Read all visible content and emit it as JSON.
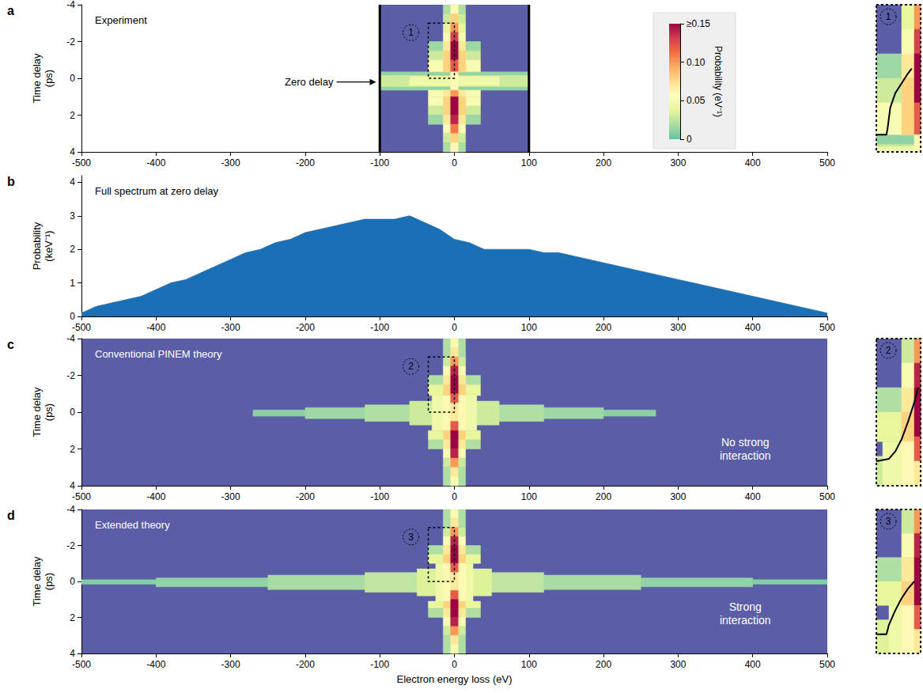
{
  "chart_data": [
    {
      "label": "a",
      "type": "heatmap",
      "title": "Experiment",
      "xlim": [
        -500,
        500
      ],
      "xticks": [
        -500,
        -400,
        -300,
        -200,
        -100,
        0,
        100,
        200,
        300,
        400,
        500
      ],
      "ylim": [
        4,
        -4
      ],
      "yticks": [
        -4,
        -2,
        0,
        2,
        4
      ],
      "ylabel": "Time delay (ps)",
      "measured_range": [
        -100,
        100
      ],
      "annotations": [
        {
          "text": "Zero delay",
          "x": -105,
          "y": 0.2
        }
      ],
      "colorbar": {
        "label": "Probability (eV⁻¹)",
        "range": [
          0,
          0.15
        ],
        "ticks": [
          0,
          0.05,
          {
            "value": 0.1,
            "label": "0.10"
          },
          {
            "value": 0.15,
            "label": "≥0.15"
          }
        ]
      },
      "cells": [
        [
          -100,
          100,
          -0.35,
          0.65,
          0.012
        ],
        [
          -100,
          100,
          -0.15,
          0.45,
          0.03
        ],
        [
          -60,
          60,
          -0.1,
          0.4,
          0.045
        ],
        [
          -35,
          35,
          -2,
          -1.5,
          0.015
        ],
        [
          -35,
          35,
          -1.5,
          -1,
          0.03
        ],
        [
          -35,
          35,
          -1,
          -0.35,
          0.05
        ],
        [
          -35,
          35,
          0.65,
          1,
          0.05
        ],
        [
          -35,
          35,
          1,
          1.5,
          0.05
        ],
        [
          -35,
          35,
          1.5,
          2,
          0.03
        ],
        [
          -35,
          35,
          2,
          2.5,
          0.015
        ],
        [
          -15,
          15,
          -4,
          -3.5,
          0.02
        ],
        [
          -15,
          15,
          -3.5,
          -3,
          0.03
        ],
        [
          -15,
          15,
          -3,
          -2.5,
          0.04
        ],
        [
          -15,
          15,
          -2.5,
          -2,
          0.05
        ],
        [
          -15,
          15,
          -2,
          -1.5,
          0.07
        ],
        [
          -15,
          15,
          -1.5,
          -1,
          0.08
        ],
        [
          -15,
          15,
          -1,
          -0.35,
          0.08
        ],
        [
          -15,
          15,
          0.65,
          1,
          0.07
        ],
        [
          -15,
          15,
          1,
          1.5,
          0.08
        ],
        [
          -15,
          15,
          1.5,
          2,
          0.08
        ],
        [
          -15,
          15,
          2,
          2.5,
          0.07
        ],
        [
          -15,
          15,
          2.5,
          3,
          0.05
        ],
        [
          -15,
          15,
          3,
          3.5,
          0.03
        ],
        [
          -15,
          15,
          3.5,
          4,
          0.02
        ],
        [
          -5,
          5,
          -4,
          -3.5,
          0.06
        ],
        [
          -5,
          5,
          -3.5,
          -3,
          0.08
        ],
        [
          -5,
          5,
          -3,
          -2.5,
          0.1
        ],
        [
          -5,
          5,
          -2.5,
          -2,
          0.13
        ],
        [
          -5,
          5,
          -2,
          -1.5,
          0.16
        ],
        [
          -5,
          5,
          -1.5,
          -1,
          0.15
        ],
        [
          -5,
          5,
          -1,
          -0.35,
          0.12
        ],
        [
          -5,
          5,
          -0.35,
          0.65,
          0.06
        ],
        [
          -5,
          5,
          0.65,
          1,
          0.1
        ],
        [
          -5,
          5,
          1,
          1.5,
          0.15
        ],
        [
          -5,
          5,
          1.5,
          2,
          0.16
        ],
        [
          -5,
          5,
          2,
          2.5,
          0.14
        ],
        [
          -5,
          5,
          2.5,
          3,
          0.11
        ],
        [
          -5,
          5,
          3,
          3.5,
          0.08
        ],
        [
          -5,
          5,
          3.5,
          4,
          0.06
        ]
      ],
      "inset": {
        "label": "1",
        "xlim": [
          -35,
          0
        ],
        "ylim": [
          0,
          -3
        ],
        "tick_labels": false,
        "curve": {
          "x": [
            -35,
            -27,
            -26,
            -24,
            -20,
            -15,
            -10,
            -7
          ],
          "y": [
            -0.35,
            -0.35,
            -0.5,
            -0.9,
            -1.2,
            -1.4,
            -1.6,
            -1.7
          ]
        }
      }
    },
    {
      "label": "b",
      "type": "area",
      "title": "Full spectrum at zero delay",
      "color": "#1a6fb5",
      "xlim": [
        -500,
        500
      ],
      "xticks": [
        -500,
        -400,
        -300,
        -200,
        -100,
        0,
        100,
        200,
        300,
        400,
        500
      ],
      "ylim": [
        0,
        4.2
      ],
      "yticks": [
        0,
        1,
        2,
        3,
        4
      ],
      "ylabel": "Probability (keV⁻¹)",
      "x": [
        -500,
        -480,
        -460,
        -440,
        -420,
        -400,
        -380,
        -360,
        -340,
        -320,
        -300,
        -280,
        -260,
        -240,
        -220,
        -200,
        -180,
        -160,
        -140,
        -120,
        -100,
        -80,
        -60,
        -40,
        -20,
        0,
        20,
        40,
        60,
        80,
        100,
        120,
        140,
        160,
        180,
        200,
        220,
        240,
        260,
        280,
        300,
        320,
        340,
        360,
        380,
        400,
        420,
        440,
        460,
        480,
        500
      ],
      "values": [
        0.1,
        0.3,
        0.4,
        0.5,
        0.6,
        0.8,
        1.0,
        1.1,
        1.3,
        1.5,
        1.7,
        1.9,
        2.0,
        2.2,
        2.3,
        2.5,
        2.6,
        2.7,
        2.8,
        2.9,
        2.9,
        2.9,
        3.0,
        2.8,
        2.6,
        2.3,
        2.2,
        2.0,
        2.0,
        2.0,
        2.0,
        1.9,
        1.9,
        1.8,
        1.7,
        1.6,
        1.5,
        1.4,
        1.3,
        1.2,
        1.1,
        1.0,
        0.9,
        0.8,
        0.7,
        0.6,
        0.5,
        0.4,
        0.3,
        0.2,
        0.1
      ]
    },
    {
      "label": "c",
      "type": "heatmap",
      "title": "Conventional PINEM theory",
      "xlim": [
        -500,
        500
      ],
      "xticks": [
        -500,
        -400,
        -300,
        -200,
        -100,
        0,
        100,
        200,
        300,
        400,
        500
      ],
      "ylim": [
        4,
        -4
      ],
      "yticks": [
        -4,
        -2,
        0,
        2,
        4
      ],
      "ylabel": "Time delay (ps)",
      "annotations": [
        {
          "text": "No strong interaction",
          "x": 390,
          "y": 2
        }
      ],
      "cells": [
        [
          -270,
          270,
          -0.12,
          0.22,
          0.01
        ],
        [
          -200,
          200,
          -0.25,
          0.35,
          0.015
        ],
        [
          -120,
          120,
          -0.4,
          0.5,
          0.02
        ],
        [
          -60,
          60,
          -0.6,
          0.7,
          0.03
        ],
        [
          -30,
          30,
          -0.9,
          1.0,
          0.045
        ],
        [
          -35,
          35,
          -2,
          -1.5,
          0.02
        ],
        [
          -35,
          35,
          -1.5,
          -0.9,
          0.04
        ],
        [
          -35,
          35,
          1.0,
          1.5,
          0.04
        ],
        [
          -35,
          35,
          1.5,
          2,
          0.02
        ],
        [
          -15,
          15,
          -4,
          -3,
          0.02
        ],
        [
          -15,
          15,
          -3,
          -2.5,
          0.03
        ],
        [
          -15,
          15,
          -2.5,
          -2,
          0.05
        ],
        [
          -15,
          15,
          -2,
          -1.5,
          0.07
        ],
        [
          -15,
          15,
          -1.5,
          -0.9,
          0.08
        ],
        [
          -15,
          15,
          -0.9,
          1.0,
          0.06
        ],
        [
          -15,
          15,
          1,
          1.5,
          0.08
        ],
        [
          -15,
          15,
          1.5,
          2,
          0.07
        ],
        [
          -15,
          15,
          2,
          2.5,
          0.05
        ],
        [
          -15,
          15,
          2.5,
          3,
          0.03
        ],
        [
          -15,
          15,
          3,
          4,
          0.02
        ],
        [
          -5,
          5,
          -4,
          -3.5,
          0.05
        ],
        [
          -5,
          5,
          -3.5,
          -3,
          0.07
        ],
        [
          -5,
          5,
          -3,
          -2.5,
          0.1
        ],
        [
          -5,
          5,
          -2.5,
          -2,
          0.14
        ],
        [
          -5,
          5,
          -2,
          -1.5,
          0.16
        ],
        [
          -5,
          5,
          -1.5,
          -1,
          0.16
        ],
        [
          -5,
          5,
          -1,
          -0.5,
          0.12
        ],
        [
          -5,
          5,
          -0.5,
          0.5,
          0.07
        ],
        [
          -5,
          5,
          0.5,
          1,
          0.12
        ],
        [
          -5,
          5,
          1,
          1.5,
          0.16
        ],
        [
          -5,
          5,
          1.5,
          2,
          0.16
        ],
        [
          -5,
          5,
          2,
          2.5,
          0.14
        ],
        [
          -5,
          5,
          2.5,
          3,
          0.1
        ],
        [
          -5,
          5,
          3,
          3.5,
          0.07
        ],
        [
          -5,
          5,
          3.5,
          4,
          0.05
        ]
      ],
      "inset": {
        "label": "2",
        "xlim": [
          -35,
          0
        ],
        "ylim": [
          0,
          -3
        ],
        "tick_labels": false,
        "curve": {
          "x": [
            -35,
            -25,
            -20,
            -15,
            -10,
            -5,
            -2
          ],
          "y": [
            -0.5,
            -0.55,
            -0.7,
            -0.95,
            -1.3,
            -1.7,
            -2.0
          ]
        }
      }
    },
    {
      "label": "d",
      "type": "heatmap",
      "title": "Extended theory",
      "xlim": [
        -500,
        500
      ],
      "xticks": [
        -500,
        -400,
        -300,
        -200,
        -100,
        0,
        100,
        200,
        300,
        400,
        500
      ],
      "ylim": [
        4,
        -4
      ],
      "yticks": [
        -4,
        -2,
        0,
        2,
        4
      ],
      "ylabel": "Time delay (ps)",
      "xlabel": "Electron energy loss (eV)",
      "annotations": [
        {
          "text": "Strong interaction",
          "x": 390,
          "y": 1.8
        }
      ],
      "cells": [
        [
          -500,
          500,
          -0.1,
          0.15,
          0.008
        ],
        [
          -400,
          400,
          -0.2,
          0.3,
          0.012
        ],
        [
          -250,
          250,
          -0.35,
          0.45,
          0.018
        ],
        [
          -120,
          120,
          -0.5,
          0.6,
          0.025
        ],
        [
          -50,
          50,
          -0.7,
          0.8,
          0.035
        ],
        [
          -25,
          25,
          -1.0,
          1.1,
          0.045
        ],
        [
          -35,
          35,
          -2,
          -1.5,
          0.02
        ],
        [
          -35,
          35,
          -1.5,
          -1.0,
          0.04
        ],
        [
          -35,
          35,
          1.1,
          1.5,
          0.04
        ],
        [
          -35,
          35,
          1.5,
          2,
          0.02
        ],
        [
          -15,
          15,
          -4,
          -3,
          0.02
        ],
        [
          -15,
          15,
          -3,
          -2.5,
          0.03
        ],
        [
          -15,
          15,
          -2.5,
          -2,
          0.05
        ],
        [
          -15,
          15,
          -2,
          -1.5,
          0.07
        ],
        [
          -15,
          15,
          -1.5,
          -1.0,
          0.08
        ],
        [
          -15,
          15,
          -1.0,
          1.1,
          0.06
        ],
        [
          -15,
          15,
          1.1,
          1.5,
          0.08
        ],
        [
          -15,
          15,
          1.5,
          2,
          0.07
        ],
        [
          -15,
          15,
          2,
          2.5,
          0.05
        ],
        [
          -15,
          15,
          2.5,
          3,
          0.03
        ],
        [
          -15,
          15,
          3,
          4,
          0.02
        ],
        [
          -5,
          5,
          -4,
          -3.5,
          0.05
        ],
        [
          -5,
          5,
          -3.5,
          -3,
          0.07
        ],
        [
          -5,
          5,
          -3,
          -2.5,
          0.1
        ],
        [
          -5,
          5,
          -2.5,
          -2,
          0.14
        ],
        [
          -5,
          5,
          -2,
          -1.5,
          0.16
        ],
        [
          -5,
          5,
          -1.5,
          -1,
          0.16
        ],
        [
          -5,
          5,
          -1,
          -0.5,
          0.12
        ],
        [
          -5,
          5,
          -0.5,
          0.5,
          0.07
        ],
        [
          -5,
          5,
          0.5,
          1,
          0.12
        ],
        [
          -5,
          5,
          1,
          1.5,
          0.16
        ],
        [
          -5,
          5,
          1.5,
          2,
          0.16
        ],
        [
          -5,
          5,
          2,
          2.5,
          0.14
        ],
        [
          -5,
          5,
          2.5,
          3,
          0.1
        ],
        [
          -5,
          5,
          3,
          3.5,
          0.07
        ],
        [
          -5,
          5,
          3.5,
          4,
          0.05
        ]
      ],
      "inset": {
        "label": "3",
        "xlim": [
          -35,
          0
        ],
        "ylim": [
          0,
          -3
        ],
        "tick_labels": false,
        "curve": {
          "x": [
            -35,
            -27,
            -25,
            -20,
            -15,
            -10,
            -5
          ],
          "y": [
            -0.4,
            -0.4,
            -0.6,
            -0.9,
            -1.15,
            -1.35,
            -1.5
          ]
        }
      }
    }
  ]
}
